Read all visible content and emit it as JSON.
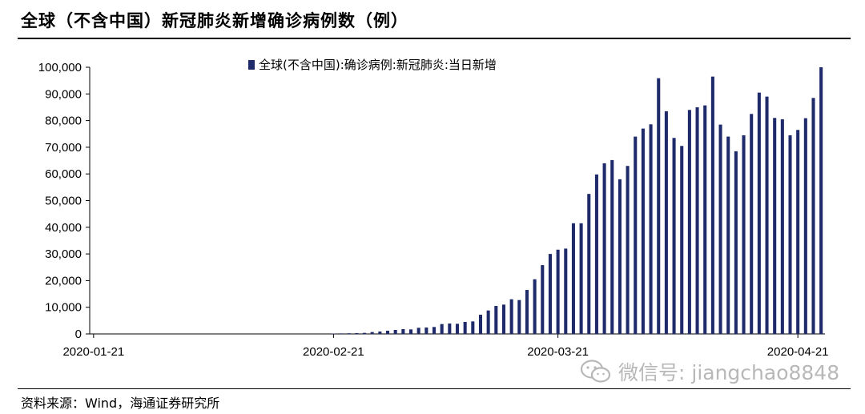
{
  "title": "全球（不含中国）新冠肺炎新增确诊病例数（例）",
  "source": "资料来源：Wind，海通证券研究所",
  "watermark": {
    "icon": "wechat-icon",
    "text": "微信号: jiangchao8848"
  },
  "colors": {
    "bar": "#1f2a6b",
    "axis": "#000000"
  },
  "chart_data": {
    "type": "bar",
    "title": "",
    "xlabel": "",
    "ylabel": "",
    "ylim": [
      0,
      100000
    ],
    "yticks": [
      0,
      10000,
      20000,
      30000,
      40000,
      50000,
      60000,
      70000,
      80000,
      90000,
      100000
    ],
    "ytick_labels": [
      "0",
      "10,000",
      "20,000",
      "30,000",
      "40,000",
      "50,000",
      "60,000",
      "70,000",
      "80,000",
      "90,000",
      "100,000"
    ],
    "xtick_labels": [
      "2020-01-21",
      "2020-02-21",
      "2020-03-21",
      "2020-04-21"
    ],
    "grid": false,
    "legend": "top",
    "series": [
      {
        "name": "全球(不含中国):确诊病例:新冠肺炎:当日新增",
        "x": [
          "2020-01-21",
          "2020-01-22",
          "2020-01-23",
          "2020-01-24",
          "2020-01-25",
          "2020-01-26",
          "2020-01-27",
          "2020-01-28",
          "2020-01-29",
          "2020-01-30",
          "2020-01-31",
          "2020-02-01",
          "2020-02-02",
          "2020-02-03",
          "2020-02-04",
          "2020-02-05",
          "2020-02-06",
          "2020-02-07",
          "2020-02-08",
          "2020-02-09",
          "2020-02-10",
          "2020-02-11",
          "2020-02-12",
          "2020-02-13",
          "2020-02-14",
          "2020-02-15",
          "2020-02-16",
          "2020-02-17",
          "2020-02-18",
          "2020-02-19",
          "2020-02-20",
          "2020-02-21",
          "2020-02-22",
          "2020-02-23",
          "2020-02-24",
          "2020-02-25",
          "2020-02-26",
          "2020-02-27",
          "2020-02-28",
          "2020-02-29",
          "2020-03-01",
          "2020-03-02",
          "2020-03-03",
          "2020-03-04",
          "2020-03-05",
          "2020-03-06",
          "2020-03-07",
          "2020-03-08",
          "2020-03-09",
          "2020-03-10",
          "2020-03-11",
          "2020-03-12",
          "2020-03-13",
          "2020-03-14",
          "2020-03-15",
          "2020-03-16",
          "2020-03-17",
          "2020-03-18",
          "2020-03-19",
          "2020-03-20",
          "2020-03-21",
          "2020-03-22",
          "2020-03-23",
          "2020-03-24",
          "2020-03-25",
          "2020-03-26",
          "2020-03-27",
          "2020-03-28",
          "2020-03-29",
          "2020-03-30",
          "2020-03-31",
          "2020-04-01",
          "2020-04-02",
          "2020-04-03",
          "2020-04-04",
          "2020-04-05",
          "2020-04-06",
          "2020-04-07",
          "2020-04-08",
          "2020-04-09",
          "2020-04-10",
          "2020-04-11",
          "2020-04-12",
          "2020-04-13",
          "2020-04-14",
          "2020-04-15",
          "2020-04-16",
          "2020-04-17",
          "2020-04-18",
          "2020-04-19",
          "2020-04-20",
          "2020-04-21",
          "2020-04-22",
          "2020-04-23",
          "2020-04-24"
        ],
        "values": [
          0,
          0,
          0,
          0,
          0,
          0,
          0,
          0,
          0,
          0,
          0,
          0,
          0,
          0,
          0,
          0,
          0,
          0,
          0,
          0,
          0,
          0,
          0,
          0,
          0,
          0,
          0,
          0,
          0,
          0,
          0,
          150,
          200,
          250,
          300,
          400,
          700,
          900,
          1200,
          1500,
          1800,
          1700,
          2300,
          2400,
          2600,
          3700,
          3900,
          3800,
          4500,
          4700,
          7200,
          8800,
          10500,
          11000,
          13000,
          12700,
          16500,
          20500,
          25800,
          30000,
          31600,
          32000,
          41500,
          41500,
          52500,
          59800,
          64000,
          65200,
          58000,
          63000,
          74000,
          77000,
          78600,
          95900,
          83500,
          73500,
          70500,
          84000,
          85000,
          85700,
          96500,
          78500,
          74000,
          68500,
          74500,
          82500,
          90500,
          89000,
          81000,
          80500,
          74500,
          76500,
          80900,
          88500,
          100000
        ]
      }
    ]
  }
}
